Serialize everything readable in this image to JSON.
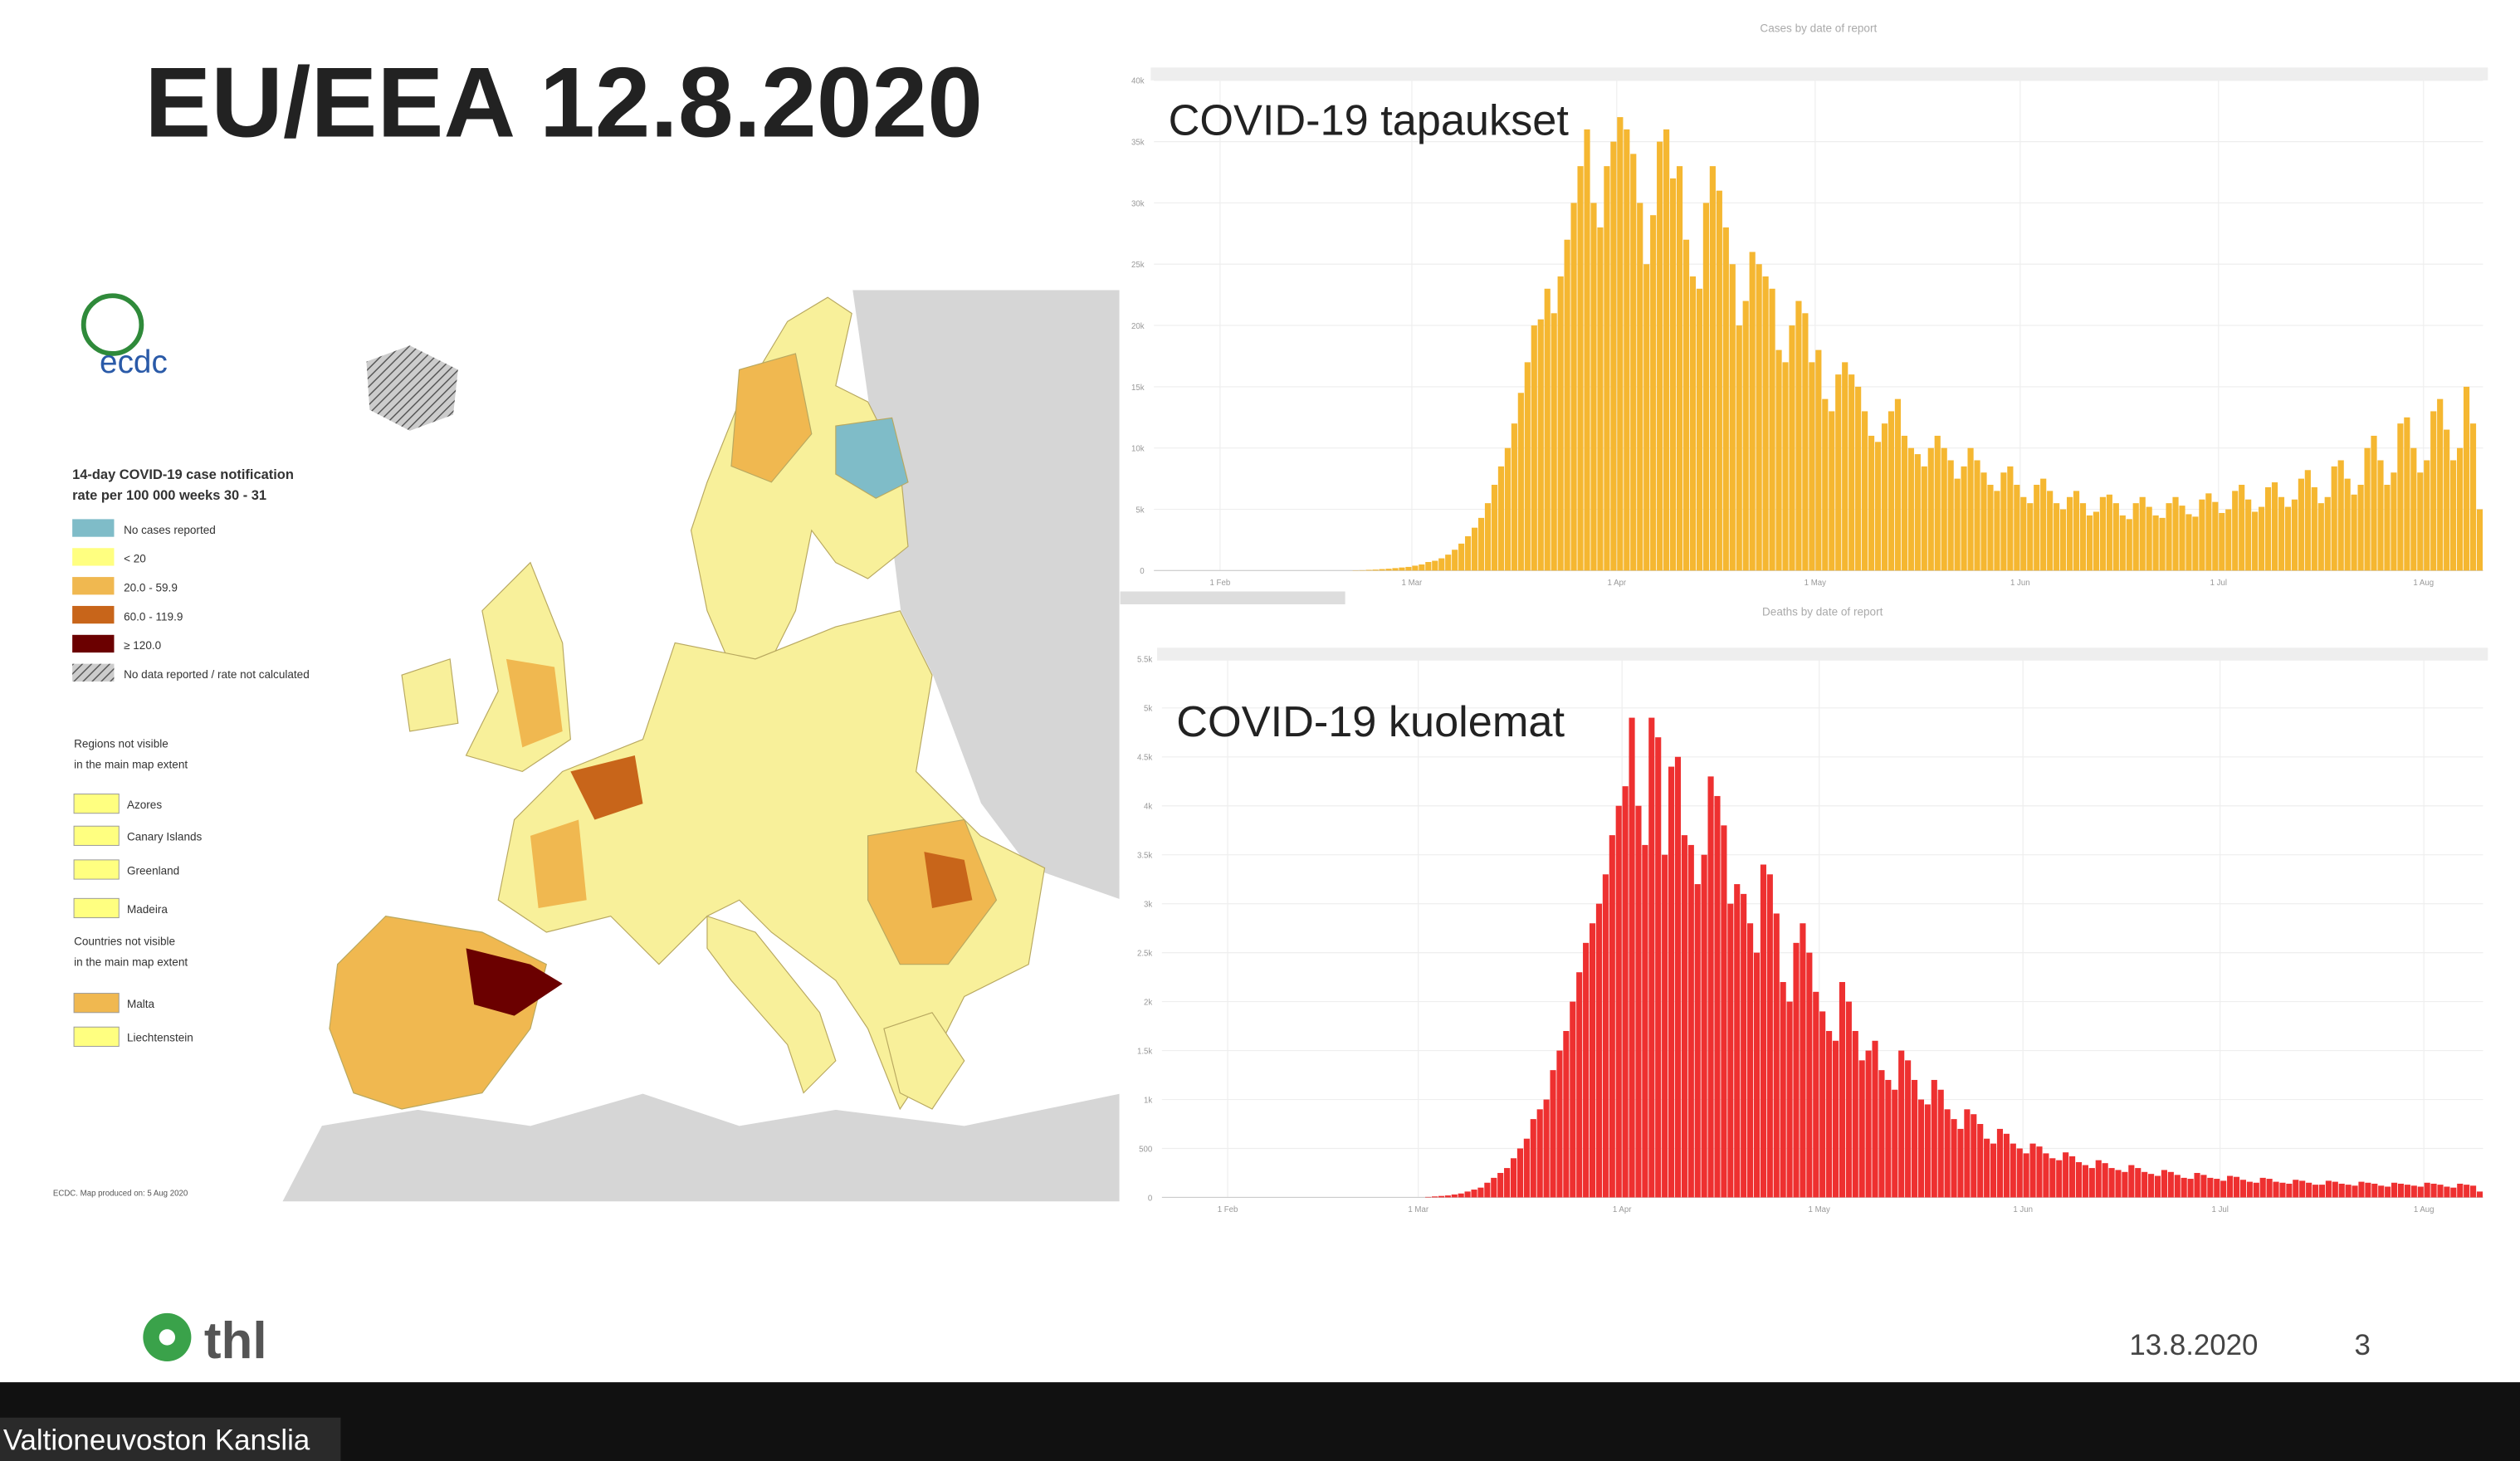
{
  "slide": {
    "title": "EU/EEA 12.8.2020"
  },
  "map": {
    "logo": "ecdc",
    "legend_title": [
      "14-day COVID-19 case notification",
      "rate per 100 000 weeks 30 - 31"
    ],
    "legend": [
      "No cases reported",
      "< 20",
      "20.0 - 59.9",
      "60.0 - 119.9",
      "≥ 120.0",
      "No data reported / rate not calculated"
    ],
    "regions_title": [
      "Regions not visible",
      "in the main map extent"
    ],
    "regions": [
      "Azores",
      "Canary Islands",
      "Greenland",
      "Madeira"
    ],
    "countries_title": [
      "Countries not visible",
      "in the main map extent"
    ],
    "countries": [
      "Malta",
      "Liechtenstein"
    ],
    "credit": "ECDC. Map produced on: 5 Aug 2020"
  },
  "chart_data": [
    {
      "type": "bar",
      "title": "COVID-19 tapaukset",
      "subtitle": "Cases by date of report",
      "color": "#f5b731",
      "xlim": [
        0,
        201
      ],
      "xticks": [
        {
          "value": 10,
          "label": "1 Feb"
        },
        {
          "value": 39,
          "label": "1 Mar"
        },
        {
          "value": 70,
          "label": "1 Apr"
        },
        {
          "value": 100,
          "label": "1 May"
        },
        {
          "value": 131,
          "label": "1 Jun"
        },
        {
          "value": 161,
          "label": "1 Jul"
        },
        {
          "value": 192,
          "label": "1 Aug"
        }
      ],
      "ylim": [
        0,
        40000
      ],
      "yticks": [
        0,
        {
          "value": 5000,
          "label": "5k"
        },
        {
          "value": 10000,
          "label": "10k"
        },
        {
          "value": 15000,
          "label": "15k"
        },
        {
          "value": 20000,
          "label": "20k"
        },
        {
          "value": 25000,
          "label": "25k"
        },
        {
          "value": 30000,
          "label": "30k"
        },
        {
          "value": 35000,
          "label": "35k"
        },
        {
          "value": 40000,
          "label": "40k"
        }
      ],
      "grid": true,
      "values": [
        0,
        0,
        0,
        0,
        0,
        0,
        0,
        0,
        0,
        0,
        0,
        0,
        0,
        0,
        0,
        0,
        0,
        0,
        0,
        0,
        0,
        0,
        0,
        0,
        0,
        0,
        0,
        0,
        0,
        0,
        20,
        30,
        60,
        80,
        120,
        150,
        200,
        250,
        300,
        400,
        500,
        700,
        800,
        1000,
        1300,
        1700,
        2200,
        2800,
        3500,
        4300,
        5500,
        7000,
        8500,
        10000,
        12000,
        14500,
        17000,
        20000,
        20500,
        23000,
        21000,
        24000,
        27000,
        30000,
        33000,
        36000,
        30000,
        28000,
        33000,
        35000,
        37000,
        36000,
        34000,
        30000,
        25000,
        29000,
        35000,
        36000,
        32000,
        33000,
        27000,
        24000,
        23000,
        30000,
        33000,
        31000,
        28000,
        25000,
        20000,
        22000,
        26000,
        25000,
        24000,
        23000,
        18000,
        17000,
        20000,
        22000,
        21000,
        17000,
        18000,
        14000,
        13000,
        16000,
        17000,
        16000,
        15000,
        13000,
        11000,
        10500,
        12000,
        13000,
        14000,
        11000,
        10000,
        9500,
        8500,
        10000,
        11000,
        10000,
        9000,
        7500,
        8500,
        10000,
        9000,
        8000,
        7000,
        6500,
        8000,
        8500,
        7000,
        6000,
        5500,
        7000,
        7500,
        6500,
        5500,
        5000,
        6000,
        6500,
        5500,
        4500,
        4800,
        6000,
        6200,
        5500,
        4500,
        4200,
        5500,
        6000,
        5200,
        4500,
        4300,
        5500,
        6000,
        5300,
        4600,
        4400,
        5800,
        6300,
        5600,
        4700,
        5000,
        6500,
        7000,
        5800,
        4800,
        5200,
        6800,
        7200,
        6000,
        5200,
        5800,
        7500,
        8200,
        6800,
        5500,
        6000,
        8500,
        9000,
        7500,
        6200,
        7000,
        10000,
        11000,
        9000,
        7000,
        8000,
        12000,
        12500,
        10000,
        8000,
        9000,
        13000,
        14000,
        11500,
        9000,
        10000,
        15000,
        12000,
        5000
      ]
    },
    {
      "type": "bar",
      "title": "COVID-19 kuolemat",
      "subtitle": "Deaths by date of report",
      "color": "#ee3030",
      "xlim": [
        0,
        201
      ],
      "xticks": [
        {
          "value": 10,
          "label": "1 Feb"
        },
        {
          "value": 39,
          "label": "1 Mar"
        },
        {
          "value": 70,
          "label": "1 Apr"
        },
        {
          "value": 100,
          "label": "1 May"
        },
        {
          "value": 131,
          "label": "1 Jun"
        },
        {
          "value": 161,
          "label": "1 Jul"
        },
        {
          "value": 192,
          "label": "1 Aug"
        }
      ],
      "ylim": [
        0,
        5500
      ],
      "yticks": [
        0,
        500,
        {
          "value": 1000,
          "label": "1k"
        },
        {
          "value": 1500,
          "label": "1.5k"
        },
        {
          "value": 2000,
          "label": "2k"
        },
        {
          "value": 2500,
          "label": "2.5k"
        },
        {
          "value": 3000,
          "label": "3k"
        },
        {
          "value": 3500,
          "label": "3.5k"
        },
        {
          "value": 4000,
          "label": "4k"
        },
        {
          "value": 4500,
          "label": "4.5k"
        },
        {
          "value": 5000,
          "label": "5k"
        },
        {
          "value": 5500,
          "label": "5.5k"
        }
      ],
      "grid": true,
      "values": [
        0,
        0,
        0,
        0,
        0,
        0,
        0,
        0,
        0,
        0,
        0,
        0,
        0,
        0,
        0,
        0,
        0,
        0,
        0,
        0,
        0,
        0,
        0,
        0,
        0,
        0,
        0,
        0,
        0,
        0,
        0,
        0,
        0,
        0,
        0,
        0,
        0,
        0,
        0,
        0,
        5,
        10,
        15,
        20,
        30,
        40,
        60,
        80,
        100,
        150,
        200,
        250,
        300,
        400,
        500,
        600,
        800,
        900,
        1000,
        1300,
        1500,
        1700,
        2000,
        2300,
        2600,
        2800,
        3000,
        3300,
        3700,
        4000,
        4200,
        4900,
        4000,
        3600,
        4900,
        4700,
        3500,
        4400,
        4500,
        3700,
        3600,
        3200,
        3500,
        4300,
        4100,
        3800,
        3000,
        3200,
        3100,
        2800,
        2500,
        3400,
        3300,
        2900,
        2200,
        2000,
        2600,
        2800,
        2500,
        2100,
        1900,
        1700,
        1600,
        2200,
        2000,
        1700,
        1400,
        1500,
        1600,
        1300,
        1200,
        1100,
        1500,
        1400,
        1200,
        1000,
        950,
        1200,
        1100,
        900,
        800,
        700,
        900,
        850,
        750,
        600,
        550,
        700,
        650,
        550,
        500,
        450,
        550,
        520,
        450,
        400,
        380,
        460,
        420,
        360,
        330,
        300,
        380,
        350,
        300,
        280,
        260,
        330,
        300,
        260,
        240,
        220,
        280,
        260,
        230,
        200,
        190,
        250,
        230,
        200,
        190,
        170,
        220,
        210,
        180,
        160,
        150,
        200,
        190,
        160,
        150,
        140,
        180,
        170,
        150,
        130,
        130,
        170,
        160,
        140,
        130,
        120,
        160,
        150,
        140,
        120,
        110,
        150,
        140,
        130,
        120,
        110,
        150,
        140,
        130,
        110,
        100,
        140,
        130,
        120,
        60
      ]
    }
  ],
  "footer": {
    "logo": "thl",
    "date": "13.8.2020",
    "page": "3"
  },
  "window": {
    "caption": "Valtioneuvoston Kanslia"
  }
}
